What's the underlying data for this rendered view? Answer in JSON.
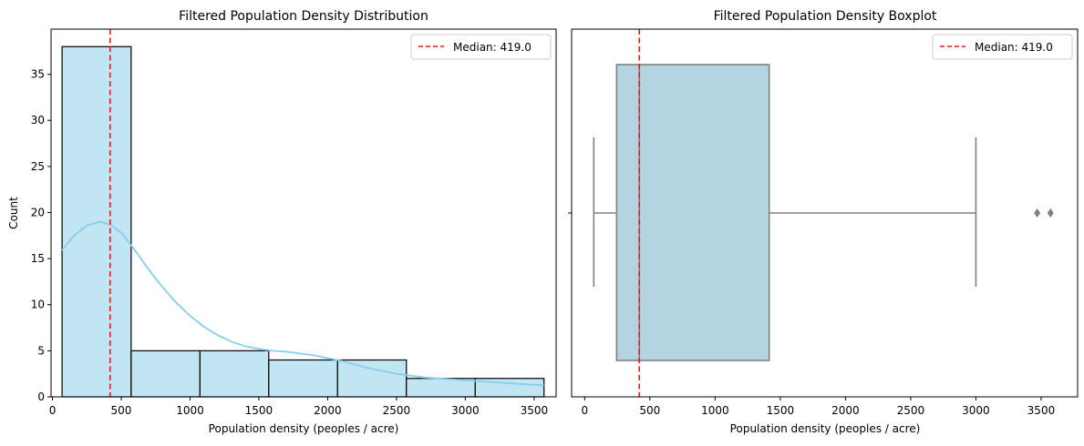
{
  "chart_data": [
    {
      "type": "bar",
      "title": "Filtered Population Density Distribution",
      "xlabel": "Population density (peoples / acre)",
      "ylabel": "Count",
      "xlim": [
        -10,
        3660
      ],
      "ylim": [
        0,
        39.9
      ],
      "xticks": [
        0,
        500,
        1000,
        1500,
        2000,
        2500,
        3000,
        3500
      ],
      "yticks": [
        0,
        5,
        10,
        15,
        20,
        25,
        30,
        35
      ],
      "bins": [
        {
          "x0": 70,
          "x1": 572,
          "count": 38
        },
        {
          "x0": 572,
          "x1": 1072,
          "count": 5
        },
        {
          "x0": 1072,
          "x1": 1572,
          "count": 5
        },
        {
          "x0": 1572,
          "x1": 2072,
          "count": 4
        },
        {
          "x0": 2072,
          "x1": 2572,
          "count": 4
        },
        {
          "x0": 2572,
          "x1": 3072,
          "count": 2
        },
        {
          "x0": 3072,
          "x1": 3572,
          "count": 2
        }
      ],
      "kde": {
        "name": "KDE",
        "x": [
          70,
          150,
          250,
          350,
          420,
          500,
          600,
          700,
          800,
          900,
          1000,
          1100,
          1200,
          1300,
          1400,
          1500,
          1600,
          1700,
          1800,
          1900,
          2000,
          2100,
          2200,
          2300,
          2400,
          2500,
          2600,
          2700,
          2800,
          2900,
          3000,
          3100,
          3200,
          3300,
          3400,
          3500,
          3572
        ],
        "y": [
          15.9,
          17.4,
          18.6,
          19.0,
          18.7,
          17.8,
          15.9,
          13.8,
          11.9,
          10.2,
          8.8,
          7.6,
          6.7,
          6.0,
          5.5,
          5.2,
          5.0,
          4.9,
          4.7,
          4.5,
          4.2,
          3.9,
          3.5,
          3.1,
          2.8,
          2.5,
          2.3,
          2.1,
          2.0,
          1.9,
          1.8,
          1.7,
          1.6,
          1.5,
          1.4,
          1.3,
          1.25
        ]
      },
      "median": {
        "value": 419.0,
        "label": "Median: 419.0"
      },
      "legend_position": "upper right",
      "grid": false
    },
    {
      "type": "boxplot",
      "title": "Filtered Population Density Boxplot",
      "xlabel": "Population density (peoples / acre)",
      "xlim": [
        -100,
        3780
      ],
      "xticks": [
        0,
        500,
        1000,
        1500,
        2000,
        2500,
        3000,
        3500
      ],
      "box": {
        "whisker_low": 70,
        "q1": 245,
        "median": 419,
        "q3": 1415,
        "whisker_high": 3000,
        "outliers": [
          3470,
          3572
        ]
      },
      "median_line": {
        "value": 419.0,
        "label": "Median: 419.0"
      },
      "legend_position": "upper right",
      "grid": false
    }
  ],
  "colors": {
    "hist_fill": "#c2e5f3",
    "kde_line": "#87ceeb",
    "median_line": "#e31a1c",
    "box_fill": "#b3d4e0",
    "box_edge": "#808080"
  }
}
